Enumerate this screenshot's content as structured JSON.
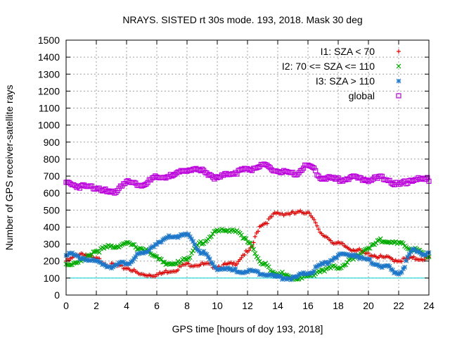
{
  "chart_data": {
    "type": "scatter",
    "title": "NRAYS. SISTED rt 30s mode. 193, 2018. Mask 30 deg",
    "xlabel": "GPS time [hours of doy 193, 2018]",
    "ylabel": "Number of GPS receiver-satellite rays",
    "xlim": [
      0,
      24
    ],
    "ylim": [
      0,
      1500
    ],
    "xticks": [
      0,
      2,
      4,
      6,
      8,
      10,
      12,
      14,
      16,
      18,
      20,
      22,
      24
    ],
    "yticks": [
      0,
      100,
      200,
      300,
      400,
      500,
      600,
      700,
      800,
      900,
      1000,
      1100,
      1200,
      1300,
      1400,
      1500
    ],
    "grid": true,
    "legend_position": "top-right",
    "reference_line": {
      "y": 100,
      "color": "#00d0d0"
    },
    "series": [
      {
        "name": "I1: SZA < 70",
        "marker": "+",
        "color": "#dd0000",
        "x": [
          0,
          1,
          2,
          3,
          4,
          5,
          6,
          7,
          8,
          9,
          10,
          11,
          12,
          13,
          14,
          15,
          16,
          17,
          18,
          19,
          20,
          21,
          22,
          23,
          24
        ],
        "y": [
          200,
          245,
          210,
          175,
          160,
          120,
          120,
          145,
          180,
          180,
          170,
          180,
          250,
          420,
          480,
          480,
          490,
          350,
          300,
          270,
          240,
          220,
          205,
          215,
          215
        ]
      },
      {
        "name": "I2: 70 <= SZA <= 110",
        "marker": "x",
        "color": "#00aa00",
        "x": [
          0,
          1,
          2,
          3,
          4,
          5,
          6,
          7,
          8,
          9,
          10,
          11,
          12,
          13,
          14,
          15,
          16,
          17,
          18,
          19,
          20,
          21,
          22,
          23,
          24
        ],
        "y": [
          180,
          200,
          260,
          285,
          300,
          275,
          220,
          175,
          220,
          310,
          375,
          385,
          320,
          180,
          130,
          100,
          110,
          150,
          165,
          210,
          280,
          325,
          300,
          270,
          225
        ]
      },
      {
        "name": "I3: SZA > 110",
        "marker": "*",
        "color": "#1e77c8",
        "x": [
          0,
          1,
          2,
          3,
          4,
          5,
          6,
          7,
          8,
          9,
          10,
          11,
          12,
          13,
          14,
          15,
          16,
          17,
          18,
          19,
          20,
          21,
          22,
          23,
          24
        ],
        "y": [
          245,
          220,
          195,
          170,
          190,
          240,
          300,
          345,
          350,
          250,
          160,
          145,
          140,
          130,
          105,
          100,
          130,
          180,
          230,
          240,
          200,
          170,
          130,
          260,
          240
        ]
      },
      {
        "name": "global",
        "marker": "square",
        "color": "#bb00dd",
        "x": [
          0,
          1,
          2,
          3,
          4,
          5,
          6,
          7,
          8,
          9,
          10,
          11,
          12,
          13,
          14,
          15,
          16,
          17,
          18,
          19,
          20,
          21,
          22,
          23,
          24
        ],
        "y": [
          660,
          640,
          635,
          600,
          665,
          650,
          690,
          700,
          740,
          730,
          690,
          720,
          740,
          760,
          730,
          710,
          760,
          690,
          680,
          690,
          680,
          690,
          650,
          680,
          680
        ]
      }
    ]
  }
}
